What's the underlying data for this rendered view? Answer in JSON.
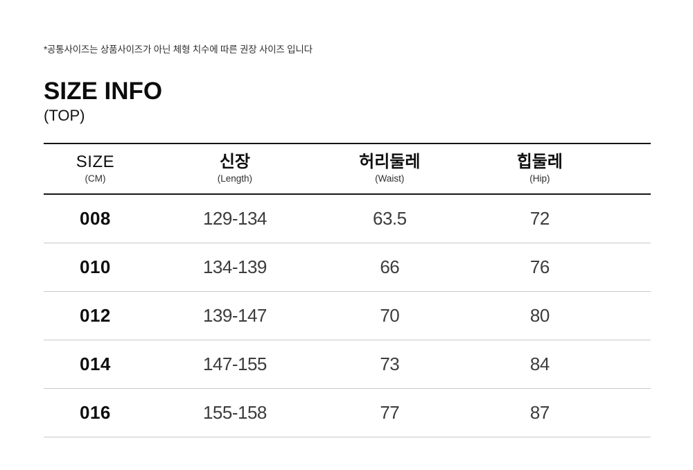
{
  "note": "*공통사이즈는 상품사이즈가 아닌 체형 치수에 따른 권장 사이즈 입니다",
  "title": "SIZE INFO",
  "subtitle": "(TOP)",
  "table": {
    "headers": [
      {
        "main": "SIZE",
        "sub": "(CM)"
      },
      {
        "main": "신장",
        "sub": "(Length)"
      },
      {
        "main": "허리둘레",
        "sub": "(Waist)"
      },
      {
        "main": "힙둘레",
        "sub": "(Hip)"
      }
    ],
    "rows": [
      {
        "size": "008",
        "length": "129-134",
        "waist": "63.5",
        "hip": "72"
      },
      {
        "size": "010",
        "length": "134-139",
        "waist": "66",
        "hip": "76"
      },
      {
        "size": "012",
        "length": "139-147",
        "waist": "70",
        "hip": "80"
      },
      {
        "size": "014",
        "length": "147-155",
        "waist": "73",
        "hip": "84"
      },
      {
        "size": "016",
        "length": "155-158",
        "waist": "77",
        "hip": "87"
      }
    ],
    "colors": {
      "heavy_rule": "#151515",
      "light_rule": "#c9c9c9",
      "text_primary": "#0e0e0e",
      "text_secondary": "#3c3c3c"
    }
  }
}
